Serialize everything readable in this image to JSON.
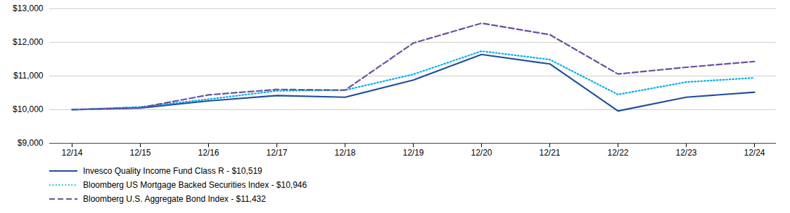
{
  "chart_data": {
    "type": "line",
    "categories": [
      "12/14",
      "12/15",
      "12/16",
      "12/17",
      "12/18",
      "12/19",
      "12/20",
      "12/21",
      "12/22",
      "12/23",
      "12/24"
    ],
    "series": [
      {
        "name": "Invesco Quality Income Fund Class R - $10,519",
        "color": "#1F4E9B",
        "line_style": "solid",
        "values": [
          10000,
          10050,
          10260,
          10420,
          10370,
          10880,
          11640,
          11360,
          9960,
          10370,
          10519
        ]
      },
      {
        "name": "Bloomberg US Mortgage Backed Securities Index - $10,946",
        "color": "#00AEEF",
        "line_style": "dotted",
        "values": [
          10000,
          10080,
          10310,
          10560,
          10580,
          11050,
          11740,
          11490,
          10450,
          10820,
          10946
        ]
      },
      {
        "name": "Bloomberg U.S. Aggregate Bond Index - $11,432",
        "color": "#6B4FA0",
        "line_style": "dashed",
        "values": [
          10000,
          10060,
          10440,
          10600,
          10580,
          11980,
          12570,
          12230,
          11060,
          11260,
          11432
        ]
      }
    ],
    "ylim": [
      9000,
      13000
    ],
    "yticks": [
      {
        "value": 9000,
        "label": "$9,000"
      },
      {
        "value": 10000,
        "label": "$10,000"
      },
      {
        "value": 11000,
        "label": "$11,000"
      },
      {
        "value": 12000,
        "label": "$12,000"
      },
      {
        "value": 13000,
        "label": "$13,000"
      }
    ],
    "grid": true,
    "legend": "bottom"
  }
}
